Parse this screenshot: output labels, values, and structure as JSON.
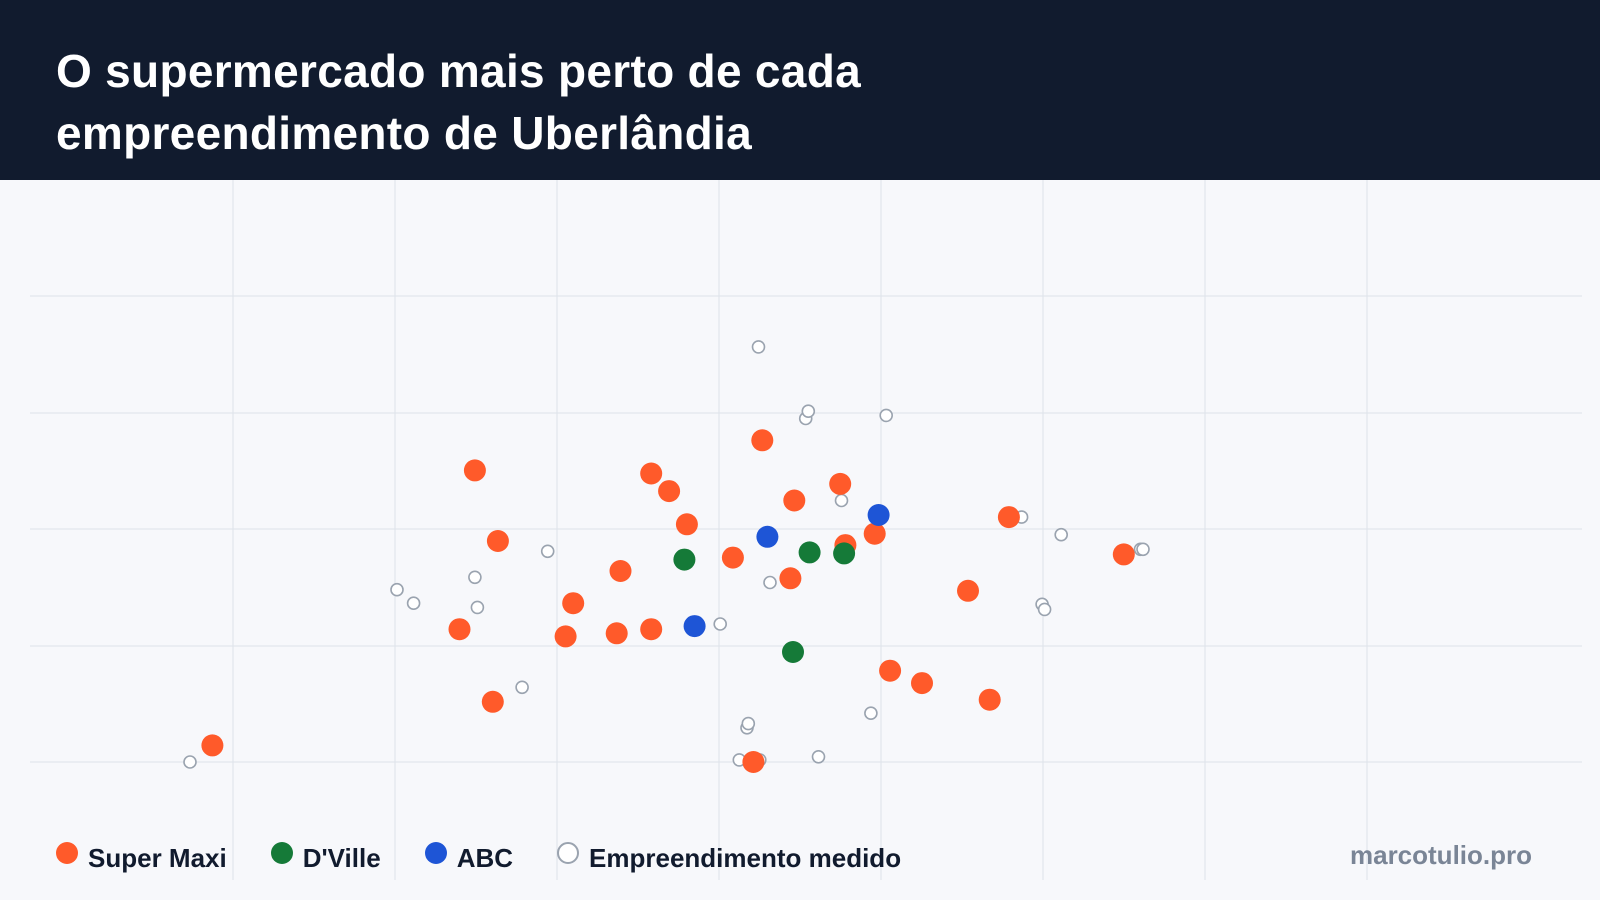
{
  "header": {
    "title_line1": "O supermercado mais perto de cada",
    "title_line2": "empreendimento de Uberlândia"
  },
  "credit": "marcotulio.pro",
  "colors": {
    "header_bg": "#111b2e",
    "super_maxi": "#ff5a2a",
    "dville": "#157a38",
    "abc": "#1e55d6",
    "empreendimento": "#9aa3af",
    "grid": "#dde2ea"
  },
  "legend": [
    {
      "key": "super_maxi",
      "label": "Super Maxi",
      "color": "#ff5a2a",
      "style": "filled"
    },
    {
      "key": "dville",
      "label": "D'Ville",
      "color": "#157a38",
      "style": "filled"
    },
    {
      "key": "abc",
      "label": "ABC",
      "color": "#1e55d6",
      "style": "filled"
    },
    {
      "key": "empreendimento",
      "label": "Empreendimento medido",
      "color": "#9aa3af",
      "style": "hollow"
    }
  ],
  "chart_data": {
    "type": "scatter",
    "title": "O supermercado mais perto de cada empreendimento de Uberlândia",
    "xlabel": "",
    "ylabel": "",
    "axes_labels_shown": false,
    "grid": true,
    "xlim": [
      -0.25,
      9.3
    ],
    "ylim": [
      0.0,
      4.5
    ],
    "legend_position": "bottom-left",
    "series": [
      {
        "name": "Super Maxi",
        "key": "super_maxi",
        "style": "filled",
        "points": [
          [
            -0.075,
            0.16
          ],
          [
            1.98,
            2.81
          ],
          [
            2.16,
            2.13
          ],
          [
            1.86,
            1.28
          ],
          [
            2.12,
            0.58
          ],
          [
            2.75,
            1.53
          ],
          [
            2.69,
            1.21
          ],
          [
            3.12,
            1.84
          ],
          [
            3.09,
            1.24
          ],
          [
            3.36,
            2.78
          ],
          [
            3.5,
            2.61
          ],
          [
            3.64,
            2.29
          ],
          [
            3.36,
            1.28
          ],
          [
            4.0,
            1.97
          ],
          [
            4.23,
            3.1
          ],
          [
            4.48,
            2.52
          ],
          [
            4.45,
            1.77
          ],
          [
            4.84,
            2.68
          ],
          [
            4.88,
            2.09
          ],
          [
            5.11,
            2.2
          ],
          [
            4.16,
            0.0
          ],
          [
            5.23,
            0.88
          ],
          [
            5.48,
            0.76
          ],
          [
            5.84,
            1.65
          ],
          [
            6.16,
            2.36
          ],
          [
            6.01,
            0.6
          ],
          [
            7.06,
            2.0
          ]
        ]
      },
      {
        "name": "D'Ville",
        "key": "dville",
        "style": "filled",
        "points": [
          [
            3.62,
            1.95
          ],
          [
            4.6,
            2.02
          ],
          [
            4.87,
            2.01
          ],
          [
            4.47,
            1.06
          ]
        ]
      },
      {
        "name": "ABC",
        "key": "abc",
        "style": "filled",
        "points": [
          [
            4.27,
            2.17
          ],
          [
            5.14,
            2.38
          ],
          [
            3.7,
            1.31
          ]
        ]
      },
      {
        "name": "Empreendimento medido",
        "key": "empreendimento",
        "style": "hollow",
        "points": [
          [
            -0.25,
            0.0
          ],
          [
            1.37,
            1.66
          ],
          [
            1.5,
            1.53
          ],
          [
            1.98,
            1.78
          ],
          [
            2.0,
            1.49
          ],
          [
            2.55,
            2.03
          ],
          [
            2.35,
            0.72
          ],
          [
            4.2,
            4.0
          ],
          [
            4.57,
            3.31
          ],
          [
            4.59,
            3.38
          ],
          [
            5.2,
            3.34
          ],
          [
            4.85,
            2.52
          ],
          [
            4.29,
            1.73
          ],
          [
            3.9,
            1.33
          ],
          [
            4.11,
            0.33
          ],
          [
            4.12,
            0.37
          ],
          [
            4.05,
            0.02
          ],
          [
            4.21,
            0.02
          ],
          [
            4.67,
            0.05
          ],
          [
            5.08,
            0.47
          ],
          [
            6.26,
            2.36
          ],
          [
            6.57,
            2.19
          ],
          [
            6.42,
            1.52
          ],
          [
            6.44,
            1.47
          ],
          [
            7.19,
            2.05
          ],
          [
            7.21,
            2.05
          ]
        ]
      }
    ]
  }
}
